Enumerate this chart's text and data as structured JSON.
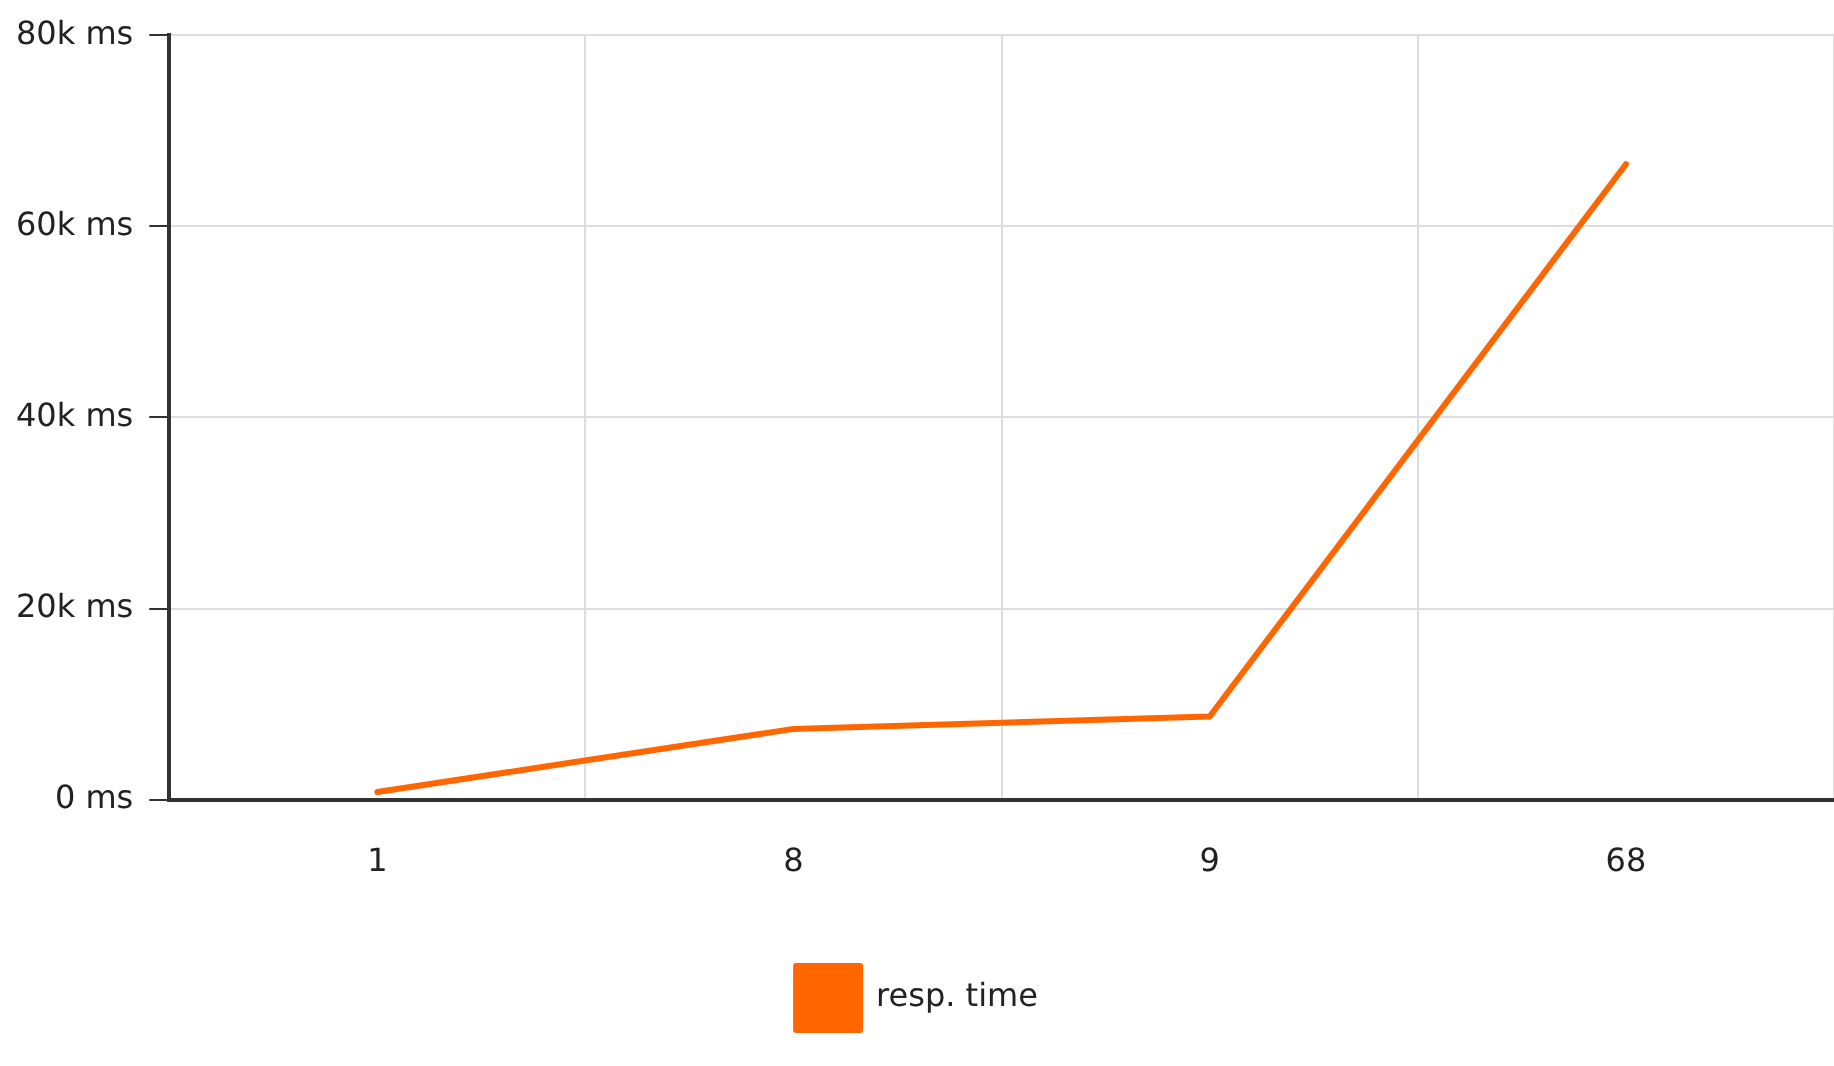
{
  "chart_data": {
    "type": "line",
    "categories": [
      "1",
      "8",
      "9",
      "68"
    ],
    "series": [
      {
        "name": "resp. time",
        "color": "#ff6600",
        "values": [
          800,
          7400,
          8700,
          66500
        ]
      }
    ],
    "ylim": [
      0,
      80000
    ],
    "yticks": [
      {
        "value": 0,
        "label": "0 ms"
      },
      {
        "value": 20000,
        "label": "20k ms"
      },
      {
        "value": 40000,
        "label": "40k ms"
      },
      {
        "value": 60000,
        "label": "60k ms"
      },
      {
        "value": 80000,
        "label": "80k ms"
      }
    ],
    "grid": true,
    "legend": "bottom",
    "marker": "none",
    "line_style": "solid"
  }
}
